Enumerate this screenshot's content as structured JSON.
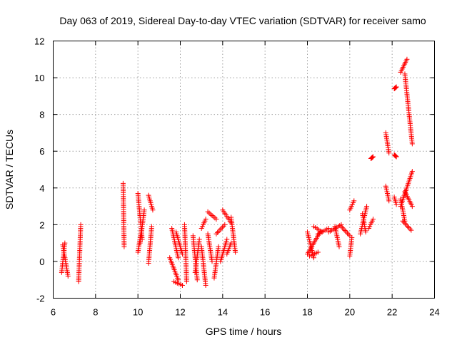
{
  "chart_data": {
    "type": "scatter",
    "title": "Day 063 of 2019, Sidereal Day-to-day VTEC variation (SDTVAR) for receiver samo",
    "xlabel": "GPS time / hours",
    "ylabel": "SDTVAR / TECUs",
    "xlim": [
      6,
      24
    ],
    "ylim": [
      -2,
      12
    ],
    "xticks": [
      "6",
      "8",
      "10",
      "12",
      "14",
      "16",
      "18",
      "20",
      "22",
      "24"
    ],
    "yticks": [
      "-2",
      "0",
      "2",
      "4",
      "6",
      "8",
      "10",
      "12"
    ],
    "grid": true,
    "marker": "+",
    "color": "#ff0000",
    "segments": [
      {
        "x": [
          6.4,
          6.55
        ],
        "y": [
          -0.6,
          1.0
        ]
      },
      {
        "x": [
          6.45,
          6.7
        ],
        "y": [
          0.9,
          -0.8
        ]
      },
      {
        "x": [
          7.2,
          7.3
        ],
        "y": [
          -1.1,
          2.0
        ]
      },
      {
        "x": [
          9.3,
          9.35
        ],
        "y": [
          4.25,
          0.8
        ]
      },
      {
        "x": [
          10.0,
          10.2
        ],
        "y": [
          3.7,
          1.2
        ]
      },
      {
        "x": [
          10.1,
          10.3
        ],
        "y": [
          1.0,
          2.8
        ]
      },
      {
        "x": [
          10.0,
          10.15
        ],
        "y": [
          0.5,
          1.6
        ]
      },
      {
        "x": [
          10.5,
          10.7
        ],
        "y": [
          3.6,
          2.8
        ]
      },
      {
        "x": [
          10.5,
          10.65
        ],
        "y": [
          -0.1,
          1.9
        ]
      },
      {
        "x": [
          11.5,
          11.9
        ],
        "y": [
          0.2,
          -1.0
        ]
      },
      {
        "x": [
          11.6,
          11.9
        ],
        "y": [
          1.8,
          0.2
        ]
      },
      {
        "x": [
          11.7,
          12.1
        ],
        "y": [
          -1.1,
          -1.3
        ]
      },
      {
        "x": [
          11.8,
          12.1
        ],
        "y": [
          1.6,
          0.4
        ]
      },
      {
        "x": [
          12.2,
          12.3
        ],
        "y": [
          2.0,
          -1.1
        ]
      },
      {
        "x": [
          12.6,
          12.8
        ],
        "y": [
          1.4,
          -1.0
        ]
      },
      {
        "x": [
          12.7,
          12.9
        ],
        "y": [
          -0.6,
          1.2
        ]
      },
      {
        "x": [
          13.0,
          13.2
        ],
        "y": [
          0.8,
          -1.3
        ]
      },
      {
        "x": [
          13.0,
          13.2
        ],
        "y": [
          1.8,
          2.3
        ]
      },
      {
        "x": [
          13.3,
          13.5
        ],
        "y": [
          1.5,
          0.0
        ]
      },
      {
        "x": [
          13.3,
          13.7
        ],
        "y": [
          2.7,
          2.3
        ]
      },
      {
        "x": [
          13.6,
          13.8
        ],
        "y": [
          -0.9,
          0.8
        ]
      },
      {
        "x": [
          13.7,
          14.1
        ],
        "y": [
          1.5,
          2.0
        ]
      },
      {
        "x": [
          13.9,
          14.2
        ],
        "y": [
          0.0,
          1.2
        ]
      },
      {
        "x": [
          14.0,
          14.4
        ],
        "y": [
          2.8,
          2.1
        ]
      },
      {
        "x": [
          14.2,
          14.4
        ],
        "y": [
          0.4,
          1.0
        ]
      },
      {
        "x": [
          14.4,
          14.6
        ],
        "y": [
          2.4,
          0.5
        ]
      },
      {
        "x": [
          18.0,
          18.3
        ],
        "y": [
          1.6,
          0.2
        ]
      },
      {
        "x": [
          18.1,
          18.5
        ],
        "y": [
          0.3,
          0.5
        ]
      },
      {
        "x": [
          18.0,
          18.6
        ],
        "y": [
          0.4,
          1.6
        ]
      },
      {
        "x": [
          18.5,
          19.0
        ],
        "y": [
          1.5,
          1.8
        ]
      },
      {
        "x": [
          18.3,
          18.7
        ],
        "y": [
          1.9,
          1.6
        ]
      },
      {
        "x": [
          19.0,
          19.6
        ],
        "y": [
          1.6,
          2.0
        ]
      },
      {
        "x": [
          19.6,
          20.0
        ],
        "y": [
          1.9,
          1.4
        ]
      },
      {
        "x": [
          19.3,
          19.5
        ],
        "y": [
          1.9,
          0.8
        ]
      },
      {
        "x": [
          20.0,
          20.1
        ],
        "y": [
          0.3,
          1.3
        ]
      },
      {
        "x": [
          20.0,
          20.2
        ],
        "y": [
          2.8,
          3.3
        ]
      },
      {
        "x": [
          20.5,
          20.8
        ],
        "y": [
          1.5,
          3.0
        ]
      },
      {
        "x": [
          20.6,
          20.75
        ],
        "y": [
          2.6,
          1.6
        ]
      },
      {
        "x": [
          20.9,
          21.1
        ],
        "y": [
          1.8,
          2.3
        ]
      },
      {
        "x": [
          21.0,
          21.1
        ],
        "y": [
          5.6,
          5.7
        ]
      },
      {
        "x": [
          21.7,
          21.85
        ],
        "y": [
          7.0,
          5.9
        ]
      },
      {
        "x": [
          21.7,
          21.85
        ],
        "y": [
          4.1,
          3.3
        ]
      },
      {
        "x": [
          22.1,
          22.2
        ],
        "y": [
          9.4,
          9.5
        ]
      },
      {
        "x": [
          22.1,
          22.2
        ],
        "y": [
          5.8,
          5.7
        ]
      },
      {
        "x": [
          22.1,
          22.2
        ],
        "y": [
          3.5,
          3.1
        ]
      },
      {
        "x": [
          22.4,
          22.7
        ],
        "y": [
          10.3,
          11.0
        ]
      },
      {
        "x": [
          22.6,
          22.95
        ],
        "y": [
          10.2,
          6.4
        ]
      },
      {
        "x": [
          22.4,
          22.95
        ],
        "y": [
          3.0,
          4.9
        ]
      },
      {
        "x": [
          22.5,
          22.9
        ],
        "y": [
          2.2,
          1.7
        ]
      },
      {
        "x": [
          22.4,
          22.6
        ],
        "y": [
          3.4,
          2.2
        ]
      },
      {
        "x": [
          22.6,
          22.95
        ],
        "y": [
          3.8,
          3.0
        ]
      }
    ]
  }
}
